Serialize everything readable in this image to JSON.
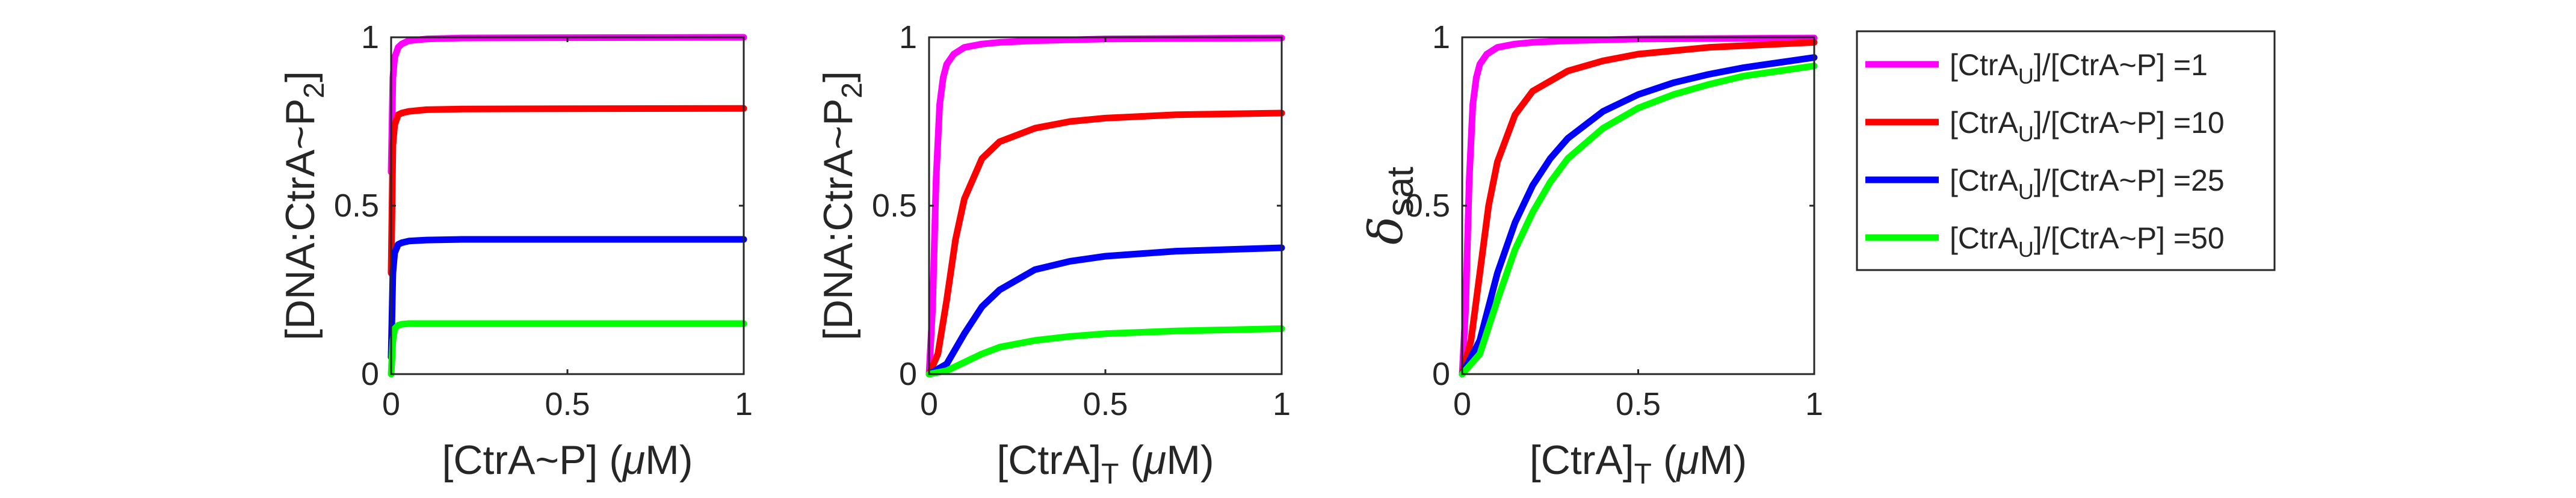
{
  "chart_data": [
    {
      "type": "line",
      "xlim": [
        0,
        1
      ],
      "ylim": [
        0,
        1
      ],
      "x_ticks": [
        "0",
        "0.5",
        "1"
      ],
      "y_ticks": [
        "0",
        "0.5",
        "1"
      ],
      "ylabel": {
        "main": "[DNA:CtrA~P",
        "sub": "2",
        "tail": "]"
      },
      "xlabel": {
        "main": "[CtrA~P] (",
        "mu": "μ",
        "tail": "M)"
      },
      "series": [
        {
          "color": "#ff00ff",
          "x": [
            0,
            0.005,
            0.01,
            0.02,
            0.03,
            0.05,
            0.1,
            0.2,
            0.5,
            1
          ],
          "y": [
            0.6,
            0.88,
            0.94,
            0.97,
            0.98,
            0.99,
            0.995,
            0.998,
            0.999,
            1.0
          ]
        },
        {
          "color": "#ff0000",
          "x": [
            0,
            0.005,
            0.01,
            0.02,
            0.03,
            0.05,
            0.1,
            0.2,
            0.5,
            1
          ],
          "y": [
            0.3,
            0.68,
            0.74,
            0.77,
            0.775,
            0.78,
            0.785,
            0.787,
            0.788,
            0.789
          ]
        },
        {
          "color": "#0000ff",
          "x": [
            0,
            0.005,
            0.01,
            0.02,
            0.03,
            0.05,
            0.1,
            0.2,
            0.5,
            1
          ],
          "y": [
            0.05,
            0.3,
            0.36,
            0.385,
            0.39,
            0.395,
            0.398,
            0.4,
            0.4,
            0.4
          ]
        },
        {
          "color": "#00ff00",
          "x": [
            0,
            0.005,
            0.01,
            0.02,
            0.03,
            0.05,
            0.1,
            0.2,
            0.5,
            1
          ],
          "y": [
            0.0,
            0.1,
            0.135,
            0.145,
            0.148,
            0.15,
            0.15,
            0.15,
            0.15,
            0.15
          ]
        }
      ]
    },
    {
      "type": "line",
      "xlim": [
        0,
        1
      ],
      "ylim": [
        0,
        1
      ],
      "x_ticks": [
        "0",
        "0.5",
        "1"
      ],
      "y_ticks": [
        "0",
        "0.5",
        "1"
      ],
      "ylabel": {
        "main": "[DNA:CtrA~P",
        "sub": "2",
        "tail": "]"
      },
      "xlabel": {
        "main": "[CtrA]",
        "sub": "T",
        "mid": " (",
        "mu": "μ",
        "tail": "M)"
      },
      "series": [
        {
          "color": "#ff00ff",
          "x": [
            0,
            0.01,
            0.02,
            0.03,
            0.04,
            0.05,
            0.07,
            0.1,
            0.15,
            0.2,
            0.3,
            0.5,
            1
          ],
          "y": [
            0.0,
            0.2,
            0.58,
            0.8,
            0.88,
            0.92,
            0.95,
            0.97,
            0.98,
            0.985,
            0.99,
            0.995,
            0.998
          ]
        },
        {
          "color": "#ff0000",
          "x": [
            0,
            0.025,
            0.05,
            0.075,
            0.1,
            0.15,
            0.2,
            0.3,
            0.4,
            0.5,
            0.7,
            1
          ],
          "y": [
            0.0,
            0.06,
            0.22,
            0.4,
            0.52,
            0.64,
            0.69,
            0.73,
            0.75,
            0.76,
            0.77,
            0.775
          ]
        },
        {
          "color": "#0000ff",
          "x": [
            0,
            0.05,
            0.1,
            0.15,
            0.2,
            0.3,
            0.4,
            0.5,
            0.7,
            1
          ],
          "y": [
            0.0,
            0.03,
            0.12,
            0.2,
            0.25,
            0.31,
            0.335,
            0.35,
            0.365,
            0.375
          ]
        },
        {
          "color": "#00ff00",
          "x": [
            0,
            0.05,
            0.1,
            0.15,
            0.2,
            0.3,
            0.4,
            0.5,
            0.7,
            1
          ],
          "y": [
            0.0,
            0.01,
            0.035,
            0.06,
            0.08,
            0.1,
            0.112,
            0.12,
            0.128,
            0.135
          ]
        }
      ]
    },
    {
      "type": "line",
      "xlim": [
        0,
        1
      ],
      "ylim": [
        0,
        1
      ],
      "x_ticks": [
        "0",
        "0.5",
        "1"
      ],
      "y_ticks": [
        "0",
        "0.5",
        "1"
      ],
      "ylabel": {
        "main": "δ",
        "sub": "sat"
      },
      "xlabel": {
        "main": "[CtrA]",
        "sub": "T",
        "mid": " (",
        "mu": "μ",
        "tail": "M)"
      },
      "series": [
        {
          "color": "#ff00ff",
          "x": [
            0,
            0.01,
            0.02,
            0.03,
            0.04,
            0.05,
            0.07,
            0.1,
            0.15,
            0.2,
            0.3,
            0.5,
            1
          ],
          "y": [
            0.0,
            0.2,
            0.58,
            0.8,
            0.88,
            0.92,
            0.95,
            0.97,
            0.98,
            0.985,
            0.99,
            0.995,
            0.998
          ]
        },
        {
          "color": "#ff0000",
          "x": [
            0,
            0.025,
            0.05,
            0.075,
            0.1,
            0.15,
            0.2,
            0.3,
            0.4,
            0.5,
            0.7,
            1
          ],
          "y": [
            0.0,
            0.1,
            0.3,
            0.5,
            0.63,
            0.77,
            0.84,
            0.9,
            0.93,
            0.95,
            0.97,
            0.985
          ]
        },
        {
          "color": "#0000ff",
          "x": [
            0,
            0.05,
            0.1,
            0.15,
            0.2,
            0.25,
            0.3,
            0.4,
            0.5,
            0.6,
            0.7,
            0.8,
            0.9,
            1
          ],
          "y": [
            0.0,
            0.1,
            0.3,
            0.45,
            0.56,
            0.64,
            0.7,
            0.78,
            0.83,
            0.865,
            0.89,
            0.91,
            0.925,
            0.94
          ]
        },
        {
          "color": "#00ff00",
          "x": [
            0,
            0.05,
            0.1,
            0.15,
            0.2,
            0.25,
            0.3,
            0.4,
            0.5,
            0.6,
            0.7,
            0.8,
            0.9,
            1
          ],
          "y": [
            0.0,
            0.06,
            0.22,
            0.37,
            0.48,
            0.57,
            0.64,
            0.73,
            0.79,
            0.83,
            0.86,
            0.885,
            0.9,
            0.915
          ]
        }
      ]
    }
  ],
  "legend": {
    "placement": "right",
    "items": [
      {
        "color": "#ff00ff",
        "pre": "[CtrA",
        "sub": "U",
        "post": "]/[CtrA~P] =1"
      },
      {
        "color": "#ff0000",
        "pre": "[CtrA",
        "sub": "U",
        "post": "]/[CtrA~P] =10"
      },
      {
        "color": "#0000ff",
        "pre": "[CtrA",
        "sub": "U",
        "post": "]/[CtrA~P] =25"
      },
      {
        "color": "#00ff00",
        "pre": "[CtrA",
        "sub": "U",
        "post": "]/[CtrA~P] =50"
      }
    ]
  }
}
